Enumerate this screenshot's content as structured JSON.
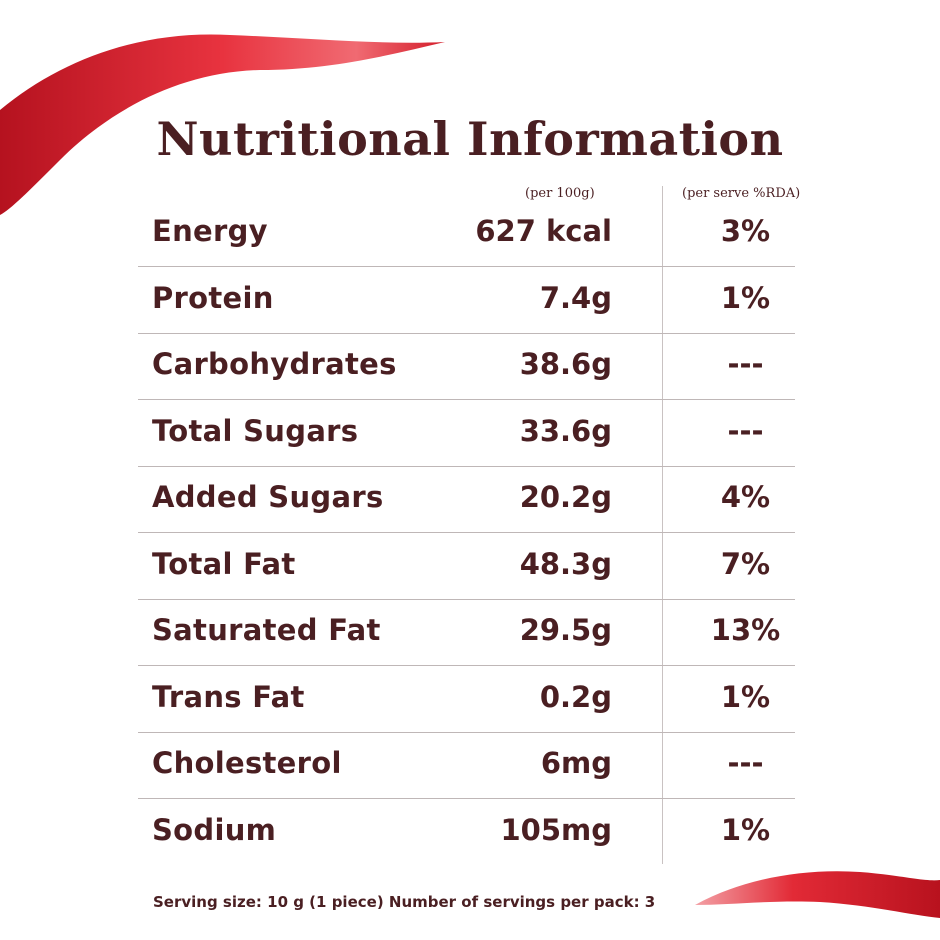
{
  "title": "Nutritional Information",
  "headers": {
    "per100": "(per 100g)",
    "rda": "(per serve %RDA)"
  },
  "rows": [
    {
      "label": "Energy",
      "value": "627 kcal",
      "rda": "3%"
    },
    {
      "label": "Protein",
      "value": "7.4g",
      "rda": "1%"
    },
    {
      "label": "Carbohydrates",
      "value": "38.6g",
      "rda": "---"
    },
    {
      "label": "Total Sugars",
      "value": "33.6g",
      "rda": "---"
    },
    {
      "label": "Added Sugars",
      "value": "20.2g",
      "rda": "4%"
    },
    {
      "label": "Total Fat",
      "value": "48.3g",
      "rda": "7%"
    },
    {
      "label": "Saturated Fat",
      "value": "29.5g",
      "rda": "13%"
    },
    {
      "label": "Trans Fat",
      "value": "0.2g",
      "rda": "1%"
    },
    {
      "label": "Cholesterol",
      "value": "6mg",
      "rda": "---"
    },
    {
      "label": "Sodium",
      "value": "105mg",
      "rda": "1%"
    }
  ],
  "footer": "Serving size: 10 g (1 piece) Number of servings per pack: 3",
  "colors": {
    "text": "#4a1f22",
    "ribbon": "#d81f2f"
  }
}
